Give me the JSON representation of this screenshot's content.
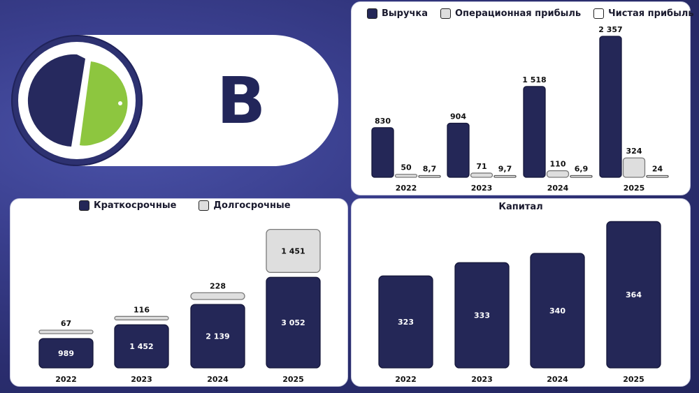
{
  "header": {
    "rating": "B"
  },
  "colors": {
    "navy": "#242757",
    "gray": "#dedede",
    "white": "#ffffff",
    "logo_navy": "#26295e",
    "logo_green": "#8dc63f"
  },
  "icons": {
    "logo": "company-logo-icon"
  },
  "chart_data": [
    {
      "type": "bar",
      "categories": [
        "2022",
        "2023",
        "2024",
        "2025"
      ],
      "series": [
        {
          "name": "Выручка",
          "values": [
            830,
            904,
            1518,
            2357
          ],
          "labels": [
            "830",
            "904",
            "1 518",
            "2 357"
          ],
          "color": "#242757"
        },
        {
          "name": "Операционная прибыль",
          "values": [
            50,
            71,
            110,
            324
          ],
          "labels": [
            "50",
            "71",
            "110",
            "324"
          ],
          "color": "#dedede"
        },
        {
          "name": "Чистая прибыль",
          "values": [
            8.7,
            9.7,
            6.9,
            24
          ],
          "labels": [
            "8,7",
            "9,7",
            "6,9",
            "24"
          ],
          "color": "#ffffff"
        }
      ],
      "legend": "top",
      "grid": false
    },
    {
      "type": "bar",
      "stacked": true,
      "categories": [
        "2022",
        "2023",
        "2024",
        "2025"
      ],
      "series": [
        {
          "name": "Краткосрочные",
          "values": [
            989,
            1452,
            2139,
            3052
          ],
          "labels": [
            "989",
            "1 452",
            "2 139",
            "3 052"
          ],
          "color": "#242757"
        },
        {
          "name": "Долгосрочные",
          "values": [
            67,
            116,
            228,
            1451
          ],
          "labels": [
            "67",
            "116",
            "228",
            "1 451"
          ],
          "color": "#dedede"
        }
      ],
      "legend": "top",
      "grid": false
    },
    {
      "type": "bar",
      "title": "Капитал",
      "categories": [
        "2022",
        "2023",
        "2024",
        "2025"
      ],
      "series": [
        {
          "values": [
            323,
            333,
            340,
            364
          ],
          "labels": [
            "323",
            "333",
            "340",
            "364"
          ],
          "color": "#242757"
        }
      ],
      "grid": false
    }
  ]
}
